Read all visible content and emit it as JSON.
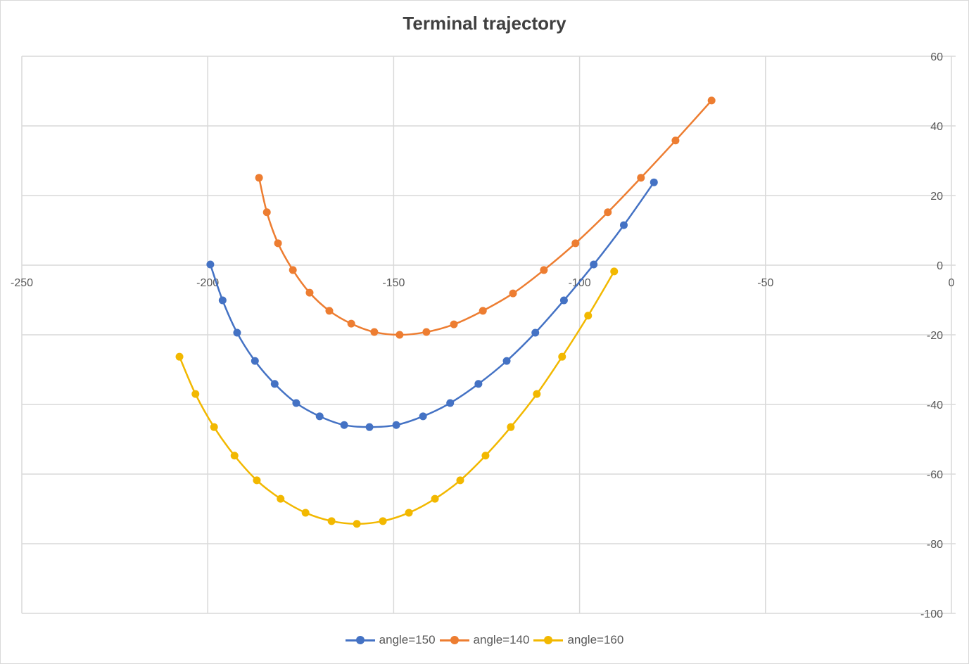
{
  "chart_data": {
    "type": "scatter",
    "subtype": "scatter-with-smooth-lines-and-markers",
    "title": "Terminal trajectory",
    "xlabel": "",
    "ylabel": "",
    "xlim": [
      -250,
      0
    ],
    "ylim": [
      -100,
      60
    ],
    "x_ticks": [
      -250,
      -200,
      -150,
      -100,
      -50,
      0
    ],
    "y_ticks": [
      60,
      40,
      20,
      0,
      -20,
      -40,
      -60,
      -80,
      -100
    ],
    "x_axis_crosses_at_y": 0,
    "y_axis_position": "right (x=0)",
    "grid": true,
    "legend_position": "bottom",
    "series": [
      {
        "name": "angle=150",
        "color": "#4472C4",
        "x": [
          -199.3,
          -196.0,
          -192.1,
          -187.3,
          -182.0,
          -176.2,
          -169.9,
          -163.3,
          -156.5,
          -149.3,
          -142.1,
          -134.8,
          -127.2,
          -119.6,
          -111.9,
          -104.2,
          -96.2,
          -88.1,
          -80.0
        ],
        "y": [
          0.2,
          -10.1,
          -19.4,
          -27.5,
          -34.1,
          -39.6,
          -43.4,
          -45.9,
          -46.5,
          -45.9,
          -43.4,
          -39.6,
          -34.1,
          -27.5,
          -19.4,
          -10.1,
          0.2,
          11.5,
          23.8
        ]
      },
      {
        "name": "angle=140",
        "color": "#ED7D31",
        "x": [
          -186.2,
          -184.1,
          -181.1,
          -177.1,
          -172.6,
          -167.3,
          -161.4,
          -155.2,
          -148.4,
          -141.2,
          -133.8,
          -126.0,
          -117.9,
          -109.6,
          -101.1,
          -92.4,
          -83.5,
          -74.2,
          -64.5
        ],
        "y": [
          25.1,
          15.2,
          6.3,
          -1.4,
          -7.9,
          -13.1,
          -16.8,
          -19.2,
          -20.0,
          -19.2,
          -17.0,
          -13.1,
          -8.1,
          -1.4,
          6.3,
          15.2,
          25.1,
          35.8,
          47.3
        ]
      },
      {
        "name": "angle=160",
        "color": "#F2B800",
        "x": [
          -207.6,
          -203.3,
          -198.3,
          -192.8,
          -186.8,
          -180.4,
          -173.7,
          -166.7,
          -159.9,
          -152.9,
          -145.9,
          -138.9,
          -132.1,
          -125.3,
          -118.5,
          -111.5,
          -104.7,
          -97.7,
          -90.7
        ],
        "y": [
          -26.3,
          -37.0,
          -46.5,
          -54.7,
          -61.8,
          -67.1,
          -71.1,
          -73.5,
          -74.3,
          -73.5,
          -71.1,
          -67.1,
          -61.8,
          -54.7,
          -46.5,
          -37.0,
          -26.3,
          -14.5,
          -1.8
        ]
      }
    ]
  },
  "legend": {
    "items": [
      {
        "label": "angle=150",
        "color": "#4472C4"
      },
      {
        "label": "angle=140",
        "color": "#ED7D31"
      },
      {
        "label": "angle=160",
        "color": "#F2B800"
      }
    ]
  }
}
